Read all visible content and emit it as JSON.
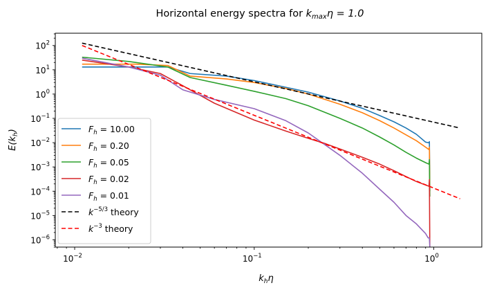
{
  "chart_data": {
    "type": "line",
    "title": "Horizontal energy spectra for k_maxη = 1.0",
    "title_parts": {
      "prefix": "Horizontal energy spectra for ",
      "k": "k",
      "max": "max",
      "eta": "η = 1.0"
    },
    "xlabel": {
      "k": "k",
      "h": "h",
      "eta": "η"
    },
    "ylabel": {
      "E": "E(k",
      "h": "h",
      "close": ")"
    },
    "x_scale": "log",
    "y_scale": "log",
    "xlim": [
      0.0078,
      1.85
    ],
    "ylim": [
      5e-07,
      320
    ],
    "x_ticks": [
      {
        "value": 0.01,
        "label": "10",
        "exp": "−2"
      },
      {
        "value": 0.1,
        "label": "10",
        "exp": "−1"
      },
      {
        "value": 1,
        "label": "10",
        "exp": "0"
      }
    ],
    "y_ticks": [
      {
        "value": 1e-06,
        "label": "10",
        "exp": "−6"
      },
      {
        "value": 1e-05,
        "label": "10",
        "exp": "−5"
      },
      {
        "value": 0.0001,
        "label": "10",
        "exp": "−4"
      },
      {
        "value": 0.001,
        "label": "10",
        "exp": "−3"
      },
      {
        "value": 0.01,
        "label": "10",
        "exp": "−2"
      },
      {
        "value": 0.1,
        "label": "10",
        "exp": "−1"
      },
      {
        "value": 1,
        "label": "10",
        "exp": "0"
      },
      {
        "value": 10,
        "label": "10",
        "exp": "1"
      },
      {
        "value": 100,
        "label": "10",
        "exp": "2"
      }
    ],
    "grid": false,
    "legend_position": "lower-left",
    "series": [
      {
        "name": "F_h = 10.00",
        "legend": {
          "F": "F",
          "h": "h",
          "rest": " = 10.00"
        },
        "color": "#1f77b4",
        "dash": "solid",
        "x": [
          0.011,
          0.022,
          0.033,
          0.044,
          0.07,
          0.1,
          0.15,
          0.2,
          0.3,
          0.4,
          0.5,
          0.6,
          0.7,
          0.8,
          0.9,
          0.94,
          0.945,
          0.95
        ],
        "y": [
          13,
          13,
          13,
          7,
          5.5,
          3.6,
          1.9,
          1.2,
          0.52,
          0.26,
          0.13,
          0.072,
          0.04,
          0.022,
          0.0105,
          0.0098,
          0.011,
          0.0001
        ]
      },
      {
        "name": "F_h = 0.20",
        "legend": {
          "F": "F",
          "h": "h",
          "rest": " = 0.20"
        },
        "color": "#ff7f0e",
        "dash": "solid",
        "x": [
          0.011,
          0.022,
          0.033,
          0.044,
          0.07,
          0.1,
          0.15,
          0.2,
          0.3,
          0.4,
          0.5,
          0.6,
          0.7,
          0.8,
          0.9,
          0.94,
          0.945,
          0.95
        ],
        "y": [
          17,
          17,
          15,
          5.5,
          4.2,
          3.0,
          1.7,
          1.0,
          0.38,
          0.17,
          0.08,
          0.04,
          0.021,
          0.012,
          0.0065,
          0.0052,
          0.0065,
          0.0001
        ]
      },
      {
        "name": "F_h = 0.05",
        "legend": {
          "F": "F",
          "h": "h",
          "rest": " = 0.05"
        },
        "color": "#2ca02c",
        "dash": "solid",
        "x": [
          0.011,
          0.02,
          0.033,
          0.044,
          0.07,
          0.1,
          0.15,
          0.2,
          0.3,
          0.4,
          0.5,
          0.6,
          0.7,
          0.8,
          0.9,
          0.94,
          0.945,
          0.95
        ],
        "y": [
          33,
          22,
          13,
          4.8,
          2.3,
          1.3,
          0.65,
          0.33,
          0.1,
          0.04,
          0.017,
          0.008,
          0.004,
          0.0023,
          0.0015,
          0.0013,
          0.002,
          6e-05
        ]
      },
      {
        "name": "F_h = 0.02",
        "legend": {
          "F": "F",
          "h": "h",
          "rest": " = 0.02"
        },
        "color": "#d62728",
        "dash": "solid",
        "x": [
          0.011,
          0.02,
          0.03,
          0.04,
          0.06,
          0.1,
          0.15,
          0.2,
          0.25,
          0.3,
          0.4,
          0.5,
          0.6,
          0.7,
          0.8,
          0.9,
          0.94,
          0.945,
          0.95
        ],
        "y": [
          25,
          13,
          7,
          2.2,
          0.42,
          0.085,
          0.03,
          0.015,
          0.009,
          0.0055,
          0.0025,
          0.0013,
          0.0007,
          0.0004,
          0.00025,
          0.00018,
          0.00016,
          0.0003,
          5e-07
        ]
      },
      {
        "name": "F_h = 0.01",
        "legend": {
          "F": "F",
          "h": "h",
          "rest": " = 0.01"
        },
        "color": "#9467bd",
        "dash": "solid",
        "x": [
          0.011,
          0.02,
          0.03,
          0.04,
          0.06,
          0.1,
          0.15,
          0.2,
          0.3,
          0.4,
          0.5,
          0.6,
          0.7,
          0.8,
          0.9,
          0.93,
          0.945,
          0.95
        ],
        "y": [
          30,
          13,
          6,
          1.5,
          0.6,
          0.25,
          0.08,
          0.025,
          0.003,
          0.00055,
          0.00012,
          3.5e-05,
          1e-05,
          4.5e-06,
          1.8e-06,
          1.2e-06,
          1.2e-06,
          5e-07
        ]
      },
      {
        "name": "k^-5/3 theory",
        "legend": {
          "k": "k",
          "exp": "−5/3",
          "rest": " theory"
        },
        "color": "#000000",
        "dash": "dashed",
        "x": [
          0.011,
          1.4
        ],
        "y": [
          125,
          0.0398
        ]
      },
      {
        "name": "k^-3 theory",
        "legend": {
          "k": "k",
          "exp": "−3",
          "rest": " theory"
        },
        "color": "#ff0000",
        "dash": "dashed",
        "x": [
          0.011,
          1.4
        ],
        "y": [
          100,
          4.87e-05
        ]
      }
    ]
  }
}
